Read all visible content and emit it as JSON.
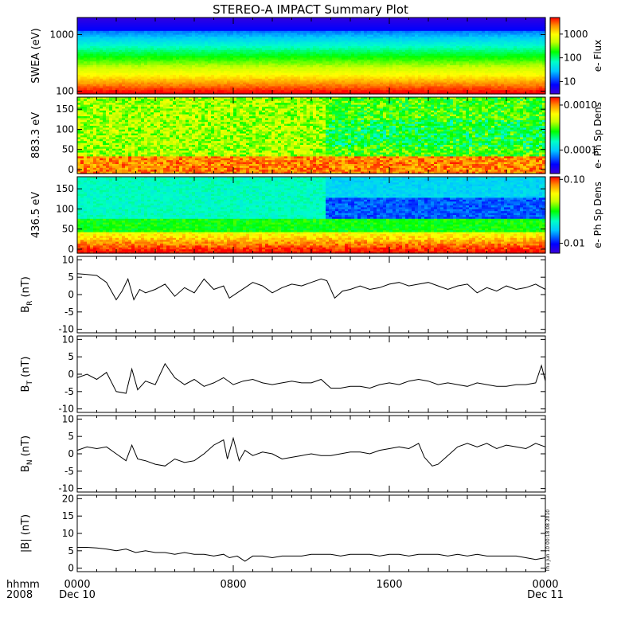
{
  "title": "STEREO-A IMPACT Summary Plot",
  "stamp": "Thu Jun 10 00:18:08 2010",
  "time_axis": {
    "corner_label_1": "hhmm",
    "corner_label_2": "2008",
    "ticks": [
      {
        "hour": 0,
        "label": "0000",
        "date": "Dec 10"
      },
      {
        "hour": 8,
        "label": "0800",
        "date": ""
      },
      {
        "hour": 16,
        "label": "1600",
        "date": ""
      },
      {
        "hour": 24,
        "label": "0000",
        "date": "Dec 11"
      }
    ]
  },
  "chart_data": [
    {
      "type": "heatmap",
      "name": "swea",
      "ylabel": "SWEA (eV)",
      "yscale": "log",
      "ylim": [
        90,
        2000
      ],
      "yticks": [
        {
          "v": 100,
          "label": "100"
        },
        {
          "v": 1000,
          "label": "1000"
        }
      ],
      "colorbar": {
        "label": "e- Flux",
        "scale": "log",
        "range": [
          3,
          5000
        ],
        "ticks": [
          {
            "v": 10,
            "label": "10"
          },
          {
            "v": 100,
            "label": "100"
          },
          {
            "v": 1000,
            "label": "1000"
          }
        ]
      },
      "description_profile_energy_eV": [
        100,
        150,
        250,
        400,
        700,
        1000,
        1500,
        2000
      ],
      "flux_profile": [
        1800,
        900,
        300,
        120,
        45,
        12,
        4,
        3
      ]
    },
    {
      "type": "heatmap",
      "name": "pad883",
      "ylabel": "883.3 eV",
      "yscale": "linear",
      "ylim": [
        -10,
        180
      ],
      "yticks": [
        {
          "v": 0,
          "label": "0"
        },
        {
          "v": 50,
          "label": "50"
        },
        {
          "v": 100,
          "label": "100"
        },
        {
          "v": 150,
          "label": "150"
        }
      ],
      "colorbar": {
        "label": "e- Ph Sp Dens",
        "scale": "log",
        "range": [
          3e-05,
          0.0015
        ],
        "ticks": [
          {
            "v": 0.0001,
            "label": "0.0001"
          },
          {
            "v": 0.001,
            "label": "0.0010"
          }
        ]
      }
    },
    {
      "type": "heatmap",
      "name": "pad436",
      "ylabel": "436.5 eV",
      "yscale": "linear",
      "ylim": [
        -10,
        180
      ],
      "yticks": [
        {
          "v": 0,
          "label": "0"
        },
        {
          "v": 50,
          "label": "50"
        },
        {
          "v": 100,
          "label": "100"
        },
        {
          "v": 150,
          "label": "150"
        }
      ],
      "colorbar": {
        "label": "e- Ph Sp Dens",
        "scale": "log",
        "range": [
          0.007,
          0.11
        ],
        "ticks": [
          {
            "v": 0.01,
            "label": "0.01"
          },
          {
            "v": 0.1,
            "label": "0.10"
          }
        ]
      }
    },
    {
      "type": "line",
      "name": "BR",
      "ylabel_main": "B",
      "ylabel_sub": "R",
      "ylabel_unit": " (nT)",
      "ylim": [
        -11,
        11
      ],
      "yticks": [
        -10,
        -5,
        0,
        5,
        10
      ],
      "x_hours": [
        0,
        0.5,
        1,
        1.5,
        2,
        2.3,
        2.6,
        2.9,
        3.2,
        3.5,
        4,
        4.5,
        5,
        5.5,
        6,
        6.5,
        7,
        7.5,
        7.8,
        8.2,
        8.6,
        9,
        9.5,
        10,
        10.5,
        11,
        11.5,
        12,
        12.5,
        12.8,
        13.2,
        13.6,
        14,
        14.5,
        15,
        15.5,
        16,
        16.5,
        17,
        17.5,
        18,
        18.5,
        19,
        19.5,
        20,
        20.5,
        21,
        21.5,
        22,
        22.5,
        23,
        23.5,
        24
      ],
      "values": [
        6,
        5.8,
        5.5,
        3.5,
        -1.5,
        1,
        4.5,
        -1.5,
        1.5,
        0.5,
        1.5,
        3,
        -0.5,
        2,
        0.5,
        4.5,
        1.5,
        2.5,
        -1,
        0.5,
        2,
        3.5,
        2.5,
        0.5,
        2,
        3,
        2.5,
        3.5,
        4.5,
        4,
        -1,
        1,
        1.5,
        2.5,
        1.5,
        2,
        3,
        3.5,
        2.5,
        3,
        3.5,
        2.5,
        1.5,
        2.5,
        3,
        0.5,
        2,
        1,
        2.5,
        1.5,
        2,
        3,
        1.5
      ]
    },
    {
      "type": "line",
      "name": "BT",
      "ylabel_main": "B",
      "ylabel_sub": "T",
      "ylabel_unit": " (nT)",
      "ylim": [
        -11,
        11
      ],
      "yticks": [
        -10,
        -5,
        0,
        5,
        10
      ],
      "x_hours": [
        0,
        0.5,
        1,
        1.5,
        2,
        2.5,
        2.8,
        3.1,
        3.5,
        4,
        4.5,
        5,
        5.5,
        6,
        6.5,
        7,
        7.5,
        8,
        8.5,
        9,
        9.5,
        10,
        10.5,
        11,
        11.5,
        12,
        12.5,
        13,
        13.5,
        14,
        14.5,
        15,
        15.5,
        16,
        16.5,
        17,
        17.5,
        18,
        18.5,
        19,
        19.5,
        20,
        20.5,
        21,
        21.5,
        22,
        22.5,
        23,
        23.5,
        23.8,
        24
      ],
      "values": [
        -1,
        0,
        -1.5,
        0.5,
        -5,
        -5.5,
        1.5,
        -4.5,
        -2,
        -3,
        3,
        -1,
        -3,
        -1.5,
        -3.5,
        -2.5,
        -1,
        -3,
        -2,
        -1.5,
        -2.5,
        -3,
        -2.5,
        -2,
        -2.5,
        -2.5,
        -1.5,
        -4,
        -4,
        -3.5,
        -3.5,
        -4,
        -3,
        -2.5,
        -3,
        -2,
        -1.5,
        -2,
        -3,
        -2.5,
        -3,
        -3.5,
        -2.5,
        -3,
        -3.5,
        -3.5,
        -3,
        -3,
        -2.5,
        2.5,
        -2
      ]
    },
    {
      "type": "line",
      "name": "BN",
      "ylabel_main": "B",
      "ylabel_sub": "N",
      "ylabel_unit": " (nT)",
      "ylim": [
        -11,
        11
      ],
      "yticks": [
        -10,
        -5,
        0,
        5,
        10
      ],
      "x_hours": [
        0,
        0.5,
        1,
        1.5,
        2,
        2.5,
        2.8,
        3.1,
        3.5,
        4,
        4.5,
        5,
        5.5,
        6,
        6.5,
        7,
        7.5,
        7.7,
        8,
        8.3,
        8.6,
        9,
        9.5,
        10,
        10.5,
        11,
        11.5,
        12,
        12.5,
        13,
        13.5,
        14,
        14.5,
        15,
        15.5,
        16,
        16.5,
        17,
        17.5,
        17.8,
        18.2,
        18.5,
        19,
        19.5,
        20,
        20.5,
        21,
        21.5,
        22,
        22.5,
        23,
        23.5,
        24
      ],
      "values": [
        1,
        2,
        1.5,
        2,
        0,
        -2,
        2.5,
        -1.5,
        -2,
        -3,
        -3.5,
        -1.5,
        -2.5,
        -2,
        0,
        2.5,
        4,
        -1.5,
        4.5,
        -2,
        1,
        -0.5,
        0.5,
        0,
        -1.5,
        -1,
        -0.5,
        0,
        -0.5,
        -0.5,
        0,
        0.5,
        0.5,
        0,
        1,
        1.5,
        2,
        1.5,
        3,
        -1,
        -3.5,
        -3,
        -0.5,
        2,
        3,
        2,
        3,
        1.5,
        2.5,
        2,
        1.5,
        3,
        2
      ]
    },
    {
      "type": "line",
      "name": "B",
      "ylabel_main": "|B|",
      "ylabel_sub": "",
      "ylabel_unit": " (nT)",
      "ylim": [
        -1,
        21
      ],
      "yticks": [
        0,
        5,
        10,
        15,
        20
      ],
      "x_hours": [
        0,
        0.5,
        1,
        1.5,
        2,
        2.5,
        3,
        3.5,
        4,
        4.5,
        5,
        5.5,
        6,
        6.5,
        7,
        7.5,
        7.8,
        8.2,
        8.6,
        9,
        9.5,
        10,
        10.5,
        11,
        11.5,
        12,
        12.5,
        13,
        13.5,
        14,
        14.5,
        15,
        15.5,
        16,
        16.5,
        17,
        17.5,
        18,
        18.5,
        19,
        19.5,
        20,
        20.5,
        21,
        21.5,
        22,
        22.5,
        23,
        23.5,
        24
      ],
      "values": [
        6,
        6,
        5.8,
        5.5,
        5,
        5.5,
        4.5,
        5,
        4.5,
        4.5,
        4,
        4.5,
        4,
        4,
        3.5,
        4,
        3,
        3.5,
        2,
        3.5,
        3.5,
        3,
        3.5,
        3.5,
        3.5,
        4,
        4,
        4,
        3.5,
        4,
        4,
        4,
        3.5,
        4,
        4,
        3.5,
        4,
        4,
        4,
        3.5,
        4,
        3.5,
        4,
        3.5,
        3.5,
        3.5,
        3.5,
        3,
        2.5,
        3
      ]
    }
  ]
}
